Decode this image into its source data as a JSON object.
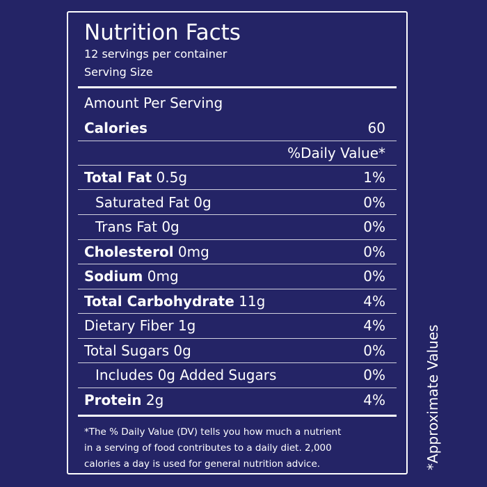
{
  "colors": {
    "background": "#242466",
    "text": "#ffffff",
    "rules": "#ffffff"
  },
  "label": {
    "title": "Nutrition Facts",
    "servings_per_container": "12 servings per container",
    "serving_size_label": "Serving Size",
    "amount_per_serving": "Amount Per Serving",
    "calories": {
      "label": "Calories",
      "value": "60"
    },
    "daily_value_header": "%Daily Value*",
    "nutrients": [
      {
        "name": "Total Fat",
        "amount": " 0.5g",
        "dv": "1%"
      },
      {
        "name": "Saturated Fat 0g",
        "amount": "",
        "dv": "0%"
      },
      {
        "name": "Trans Fat 0g",
        "amount": "",
        "dv": "0%"
      },
      {
        "name": "Cholesterol",
        "amount": " 0mg",
        "dv": "0%"
      },
      {
        "name": "Sodium",
        "amount": " 0mg",
        "dv": "0%"
      },
      {
        "name": "Total Carbohydrate",
        "amount": " 11g",
        "dv": "4%"
      },
      {
        "name": "Dietary Fiber 1g",
        "amount": "",
        "dv": "4%"
      },
      {
        "name": "Total Sugars 0g",
        "amount": "",
        "dv": "0%"
      },
      {
        "name": "Includes 0g Added Sugars",
        "amount": "",
        "dv": "0%"
      },
      {
        "name": "Protein",
        "amount": " 2g",
        "dv": "4%"
      }
    ],
    "footnote": [
      "*The % Daily Value (DV) tells you how much a nutrient",
      "in a serving of food contributes to a daily diet. 2,000",
      "calories a day is used for general nutrition advice."
    ]
  },
  "side_note": "*Approximate Values"
}
